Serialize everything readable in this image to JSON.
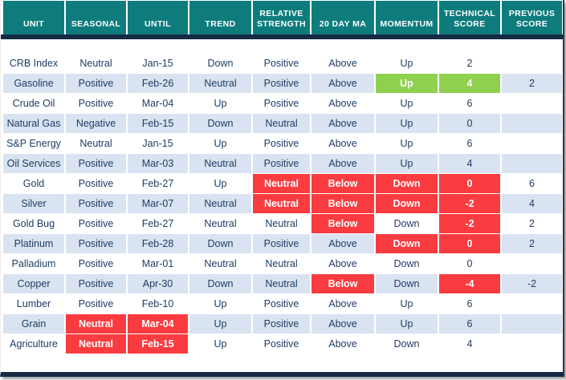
{
  "colors": {
    "header_teal": "#0e7c7d",
    "divider_navy": "#152a43",
    "row_alt_blue": "#dae3f1",
    "alert_red": "#fa3b40",
    "good_green": "#8fd04e",
    "text_dark_navy": "#1f3d64"
  },
  "chart_data": {
    "type": "table",
    "title": "",
    "columns": [
      "UNIT",
      "SEASONAL",
      "UNTIL",
      "TREND",
      "RELATIVE STRENGTH",
      "20 DAY MA",
      "MOMENTUM",
      "TECHNICAL SCORE",
      "PREVIOUS SCORE"
    ],
    "rows": [
      {
        "cells": [
          {
            "text": "CRB Index"
          },
          {
            "text": "Neutral"
          },
          {
            "text": "Jan-15"
          },
          {
            "text": "Down"
          },
          {
            "text": "Positive"
          },
          {
            "text": "Above"
          },
          {
            "text": "Up"
          },
          {
            "text": "2"
          },
          {
            "text": ""
          }
        ]
      },
      {
        "cells": [
          {
            "text": "Gasoline"
          },
          {
            "text": "Positive"
          },
          {
            "text": "Feb-26"
          },
          {
            "text": "Neutral"
          },
          {
            "text": "Positive"
          },
          {
            "text": "Above"
          },
          {
            "text": "Up",
            "status": "green"
          },
          {
            "text": "4",
            "status": "green"
          },
          {
            "text": "2"
          }
        ]
      },
      {
        "cells": [
          {
            "text": "Crude Oil"
          },
          {
            "text": "Positive"
          },
          {
            "text": "Mar-04"
          },
          {
            "text": "Up"
          },
          {
            "text": "Positive"
          },
          {
            "text": "Above"
          },
          {
            "text": "Up"
          },
          {
            "text": "6"
          },
          {
            "text": ""
          }
        ]
      },
      {
        "cells": [
          {
            "text": "Natural Gas"
          },
          {
            "text": "Negative"
          },
          {
            "text": "Feb-15"
          },
          {
            "text": "Down"
          },
          {
            "text": "Neutral"
          },
          {
            "text": "Above"
          },
          {
            "text": "Up"
          },
          {
            "text": "0"
          },
          {
            "text": ""
          }
        ]
      },
      {
        "cells": [
          {
            "text": "S&P Energy"
          },
          {
            "text": "Neutral"
          },
          {
            "text": "Jan-15"
          },
          {
            "text": "Up"
          },
          {
            "text": "Positive"
          },
          {
            "text": "Above"
          },
          {
            "text": "Up"
          },
          {
            "text": "6"
          },
          {
            "text": ""
          }
        ]
      },
      {
        "cells": [
          {
            "text": "Oil Services"
          },
          {
            "text": "Positive"
          },
          {
            "text": "Mar-03"
          },
          {
            "text": "Neutral"
          },
          {
            "text": "Positive"
          },
          {
            "text": "Above"
          },
          {
            "text": "Up"
          },
          {
            "text": "4"
          },
          {
            "text": ""
          }
        ]
      },
      {
        "cells": [
          {
            "text": "Gold"
          },
          {
            "text": "Positive"
          },
          {
            "text": "Feb-27"
          },
          {
            "text": "Up"
          },
          {
            "text": "Neutral",
            "status": "red"
          },
          {
            "text": "Below",
            "status": "red"
          },
          {
            "text": "Down",
            "status": "red"
          },
          {
            "text": "0",
            "status": "red"
          },
          {
            "text": "6"
          }
        ]
      },
      {
        "cells": [
          {
            "text": "Silver"
          },
          {
            "text": "Positive"
          },
          {
            "text": "Mar-07"
          },
          {
            "text": "Neutral"
          },
          {
            "text": "Neutral",
            "status": "red"
          },
          {
            "text": "Below",
            "status": "red"
          },
          {
            "text": "Down",
            "status": "red"
          },
          {
            "text": "-2",
            "status": "red"
          },
          {
            "text": "4"
          }
        ]
      },
      {
        "cells": [
          {
            "text": "Gold Bug"
          },
          {
            "text": "Positive"
          },
          {
            "text": "Feb-27"
          },
          {
            "text": "Neutral"
          },
          {
            "text": "Neutral"
          },
          {
            "text": "Below",
            "status": "red"
          },
          {
            "text": "Down"
          },
          {
            "text": "-2",
            "status": "red"
          },
          {
            "text": "2"
          }
        ]
      },
      {
        "cells": [
          {
            "text": "Platinum"
          },
          {
            "text": "Positive"
          },
          {
            "text": "Feb-28"
          },
          {
            "text": "Down"
          },
          {
            "text": "Positive"
          },
          {
            "text": "Above"
          },
          {
            "text": "Down",
            "status": "red"
          },
          {
            "text": "0",
            "status": "red"
          },
          {
            "text": "2"
          }
        ]
      },
      {
        "cells": [
          {
            "text": "Palladium"
          },
          {
            "text": "Positive"
          },
          {
            "text": "Mar-01"
          },
          {
            "text": "Neutral"
          },
          {
            "text": "Neutral"
          },
          {
            "text": "Above"
          },
          {
            "text": "Down"
          },
          {
            "text": "0"
          },
          {
            "text": ""
          }
        ]
      },
      {
        "cells": [
          {
            "text": "Copper"
          },
          {
            "text": "Positive"
          },
          {
            "text": "Apr-30"
          },
          {
            "text": "Down"
          },
          {
            "text": "Neutral"
          },
          {
            "text": "Below",
            "status": "red"
          },
          {
            "text": "Down"
          },
          {
            "text": "-4",
            "status": "red"
          },
          {
            "text": "-2"
          }
        ]
      },
      {
        "cells": [
          {
            "text": "Lumber"
          },
          {
            "text": "Positive"
          },
          {
            "text": "Feb-10"
          },
          {
            "text": "Up"
          },
          {
            "text": "Positive"
          },
          {
            "text": "Above"
          },
          {
            "text": "Up"
          },
          {
            "text": "6"
          },
          {
            "text": ""
          }
        ]
      },
      {
        "cells": [
          {
            "text": "Grain"
          },
          {
            "text": "Neutral",
            "status": "red"
          },
          {
            "text": "Mar-04",
            "status": "red"
          },
          {
            "text": "Up"
          },
          {
            "text": "Positive"
          },
          {
            "text": "Above"
          },
          {
            "text": "Up"
          },
          {
            "text": "6"
          },
          {
            "text": ""
          }
        ]
      },
      {
        "cells": [
          {
            "text": "Agriculture"
          },
          {
            "text": "Neutral",
            "status": "red"
          },
          {
            "text": "Feb-15",
            "status": "red"
          },
          {
            "text": "Up"
          },
          {
            "text": "Positive"
          },
          {
            "text": "Above"
          },
          {
            "text": "Down"
          },
          {
            "text": "4"
          },
          {
            "text": ""
          }
        ]
      }
    ]
  }
}
